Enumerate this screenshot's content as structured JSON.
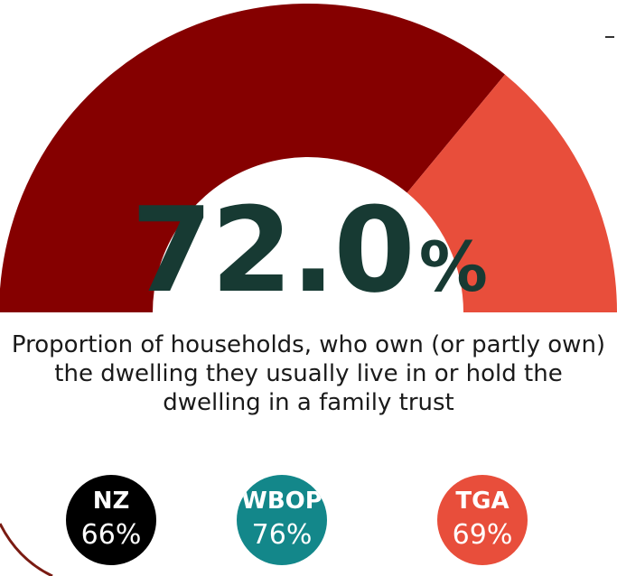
{
  "chart_data": {
    "type": "gauge",
    "value": 72.0,
    "value_label": "72.0",
    "unit": "%",
    "range": [
      0,
      100
    ],
    "caption": "Proportion of households, who own (or partly own) the dwelling they usually live in or hold the dwelling in a family trust",
    "colors": {
      "filled": "#850000",
      "remainder": "#e84e3b",
      "value_text": "#173a33"
    },
    "comparisons": [
      {
        "label": "NZ",
        "value": "66%",
        "color": "#000000"
      },
      {
        "label": "WBOP",
        "value": "76%",
        "color": "#13878a"
      },
      {
        "label": "TGA",
        "value": "69%",
        "color": "#e84e3b"
      }
    ]
  },
  "decor": {
    "border_color": "#7a1b12"
  }
}
